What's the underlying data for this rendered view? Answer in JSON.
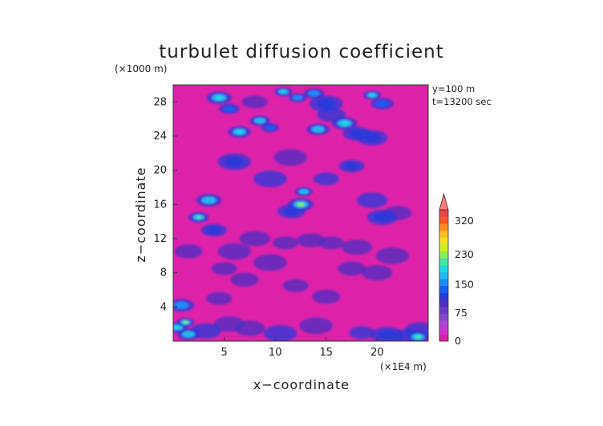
{
  "chart_data": {
    "type": "heatmap",
    "title": "turbulet diffusion coefficient",
    "xlabel": "x−coordinate",
    "ylabel": "z−coordinate",
    "x_unit": "(×1E4 m)",
    "y_unit": "(×1000 m)",
    "annotations": [
      "y=100 m",
      "t=13200 sec"
    ],
    "xlim": [
      0,
      25
    ],
    "ylim": [
      0,
      30
    ],
    "x_ticks": [
      5,
      10,
      15,
      20
    ],
    "y_ticks": [
      4,
      8,
      12,
      16,
      20,
      24,
      28
    ],
    "grid": false,
    "background_value": 10,
    "colorbar": {
      "labels": [
        "0",
        "75",
        "150",
        "230",
        "320"
      ],
      "levels": [
        0,
        15,
        30,
        45,
        60,
        75,
        90,
        105,
        120,
        135,
        150,
        170,
        190,
        210,
        230,
        250,
        270,
        290,
        320,
        350
      ],
      "colors": [
        "#dd22aa",
        "#cc33cc",
        "#aa44cc",
        "#8844cc",
        "#6a38c8",
        "#4a2ec0",
        "#2a38d8",
        "#1a5cf0",
        "#1a8cf8",
        "#22b8f0",
        "#22d8e0",
        "#44e8a8",
        "#88ee55",
        "#ccee22",
        "#f0e020",
        "#ffbb22",
        "#ff8822",
        "#ff5522",
        "#ee4444",
        "#ff7777"
      ],
      "legend_position": "right"
    },
    "features": [
      {
        "x": 0.4,
        "z": 1.6,
        "value": 160
      },
      {
        "x": 1.2,
        "z": 2.2,
        "value": 200
      },
      {
        "x": 0.8,
        "z": 4.2,
        "value": 120
      },
      {
        "x": 1.5,
        "z": 0.8,
        "value": 140
      },
      {
        "x": 3.2,
        "z": 1.2,
        "value": 90
      },
      {
        "x": 5.5,
        "z": 2.0,
        "value": 80
      },
      {
        "x": 7.5,
        "z": 1.5,
        "value": 85
      },
      {
        "x": 10.5,
        "z": 0.9,
        "value": 90
      },
      {
        "x": 14.0,
        "z": 1.8,
        "value": 80
      },
      {
        "x": 18.5,
        "z": 1.0,
        "value": 90
      },
      {
        "x": 21.0,
        "z": 0.7,
        "value": 100
      },
      {
        "x": 23.0,
        "z": 0.6,
        "value": 90
      },
      {
        "x": 24.2,
        "z": 1.3,
        "value": 95
      },
      {
        "x": 24.0,
        "z": 0.5,
        "value": 180
      },
      {
        "x": 5.0,
        "z": 8.5,
        "value": 80
      },
      {
        "x": 6.0,
        "z": 10.5,
        "value": 85
      },
      {
        "x": 7.0,
        "z": 7.2,
        "value": 80
      },
      {
        "x": 8.0,
        "z": 12.0,
        "value": 80
      },
      {
        "x": 9.5,
        "z": 9.2,
        "value": 80
      },
      {
        "x": 11.0,
        "z": 11.5,
        "value": 85
      },
      {
        "x": 13.5,
        "z": 11.8,
        "value": 85
      },
      {
        "x": 15.5,
        "z": 11.5,
        "value": 80
      },
      {
        "x": 18.0,
        "z": 11.0,
        "value": 85
      },
      {
        "x": 17.5,
        "z": 8.5,
        "value": 80
      },
      {
        "x": 20.0,
        "z": 8.0,
        "value": 80
      },
      {
        "x": 21.5,
        "z": 10.0,
        "value": 80
      },
      {
        "x": 4.5,
        "z": 5.0,
        "value": 80
      },
      {
        "x": 12.0,
        "z": 6.5,
        "value": 75
      },
      {
        "x": 15.0,
        "z": 5.2,
        "value": 75
      },
      {
        "x": 2.5,
        "z": 14.5,
        "value": 170
      },
      {
        "x": 3.5,
        "z": 16.5,
        "value": 140
      },
      {
        "x": 4.0,
        "z": 13.0,
        "value": 100
      },
      {
        "x": 12.5,
        "z": 16.0,
        "value": 190
      },
      {
        "x": 12.8,
        "z": 17.5,
        "value": 140
      },
      {
        "x": 11.6,
        "z": 15.2,
        "value": 100
      },
      {
        "x": 20.5,
        "z": 14.5,
        "value": 100
      },
      {
        "x": 19.5,
        "z": 16.5,
        "value": 90
      },
      {
        "x": 6.0,
        "z": 21.0,
        "value": 100
      },
      {
        "x": 9.5,
        "z": 19.0,
        "value": 90
      },
      {
        "x": 17.5,
        "z": 20.5,
        "value": 100
      },
      {
        "x": 15.0,
        "z": 19.0,
        "value": 90
      },
      {
        "x": 11.5,
        "z": 21.5,
        "value": 85
      },
      {
        "x": 6.5,
        "z": 24.5,
        "value": 160
      },
      {
        "x": 8.5,
        "z": 25.8,
        "value": 140
      },
      {
        "x": 9.5,
        "z": 25.0,
        "value": 110
      },
      {
        "x": 14.2,
        "z": 24.8,
        "value": 140
      },
      {
        "x": 16.8,
        "z": 25.5,
        "value": 150
      },
      {
        "x": 18.0,
        "z": 24.3,
        "value": 100
      },
      {
        "x": 19.5,
        "z": 23.8,
        "value": 100
      },
      {
        "x": 15.5,
        "z": 26.5,
        "value": 90
      },
      {
        "x": 4.5,
        "z": 28.5,
        "value": 160
      },
      {
        "x": 5.5,
        "z": 27.2,
        "value": 110
      },
      {
        "x": 10.8,
        "z": 29.2,
        "value": 150
      },
      {
        "x": 12.2,
        "z": 28.5,
        "value": 120
      },
      {
        "x": 13.8,
        "z": 29.0,
        "value": 130
      },
      {
        "x": 15.0,
        "z": 27.8,
        "value": 100
      },
      {
        "x": 19.5,
        "z": 28.8,
        "value": 160
      },
      {
        "x": 20.5,
        "z": 27.8,
        "value": 110
      },
      {
        "x": 8.0,
        "z": 28.0,
        "value": 85
      },
      {
        "x": 22.0,
        "z": 15.0,
        "value": 80
      },
      {
        "x": 1.5,
        "z": 10.5,
        "value": 85
      }
    ]
  }
}
